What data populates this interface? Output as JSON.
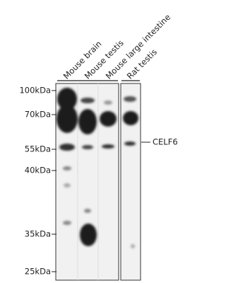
{
  "lanes": [
    "Mouse brain",
    "Mouse testis",
    "Mouse large intestine",
    "Rat testis"
  ],
  "markers": [
    "100kDa",
    "70kDa",
    "55kDa",
    "40kDa",
    "35kDa",
    "25kDa"
  ],
  "target": "CELF6"
}
